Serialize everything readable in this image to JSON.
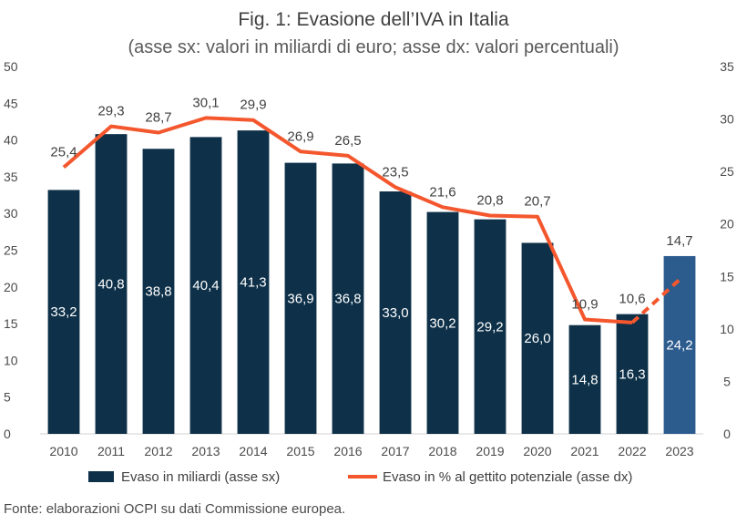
{
  "chart_data": {
    "type": "bar",
    "title": "Fig. 1: Evasione dell’IVA in Italia",
    "subtitle": "(asse sx: valori in miliardi di euro; asse dx: valori percentuali)",
    "categories": [
      "2010",
      "2011",
      "2012",
      "2013",
      "2014",
      "2015",
      "2016",
      "2017",
      "2018",
      "2019",
      "2020",
      "2021",
      "2022",
      "2023"
    ],
    "y_left": {
      "range": [
        0,
        50
      ],
      "ticks": [
        "0",
        "5",
        "10",
        "15",
        "20",
        "25",
        "30",
        "35",
        "40",
        "45",
        "50"
      ]
    },
    "y_right": {
      "range": [
        0,
        35
      ],
      "ticks": [
        "0",
        "5",
        "10",
        "15",
        "20",
        "25",
        "30",
        "35"
      ]
    },
    "series": [
      {
        "name": "Evaso in miliardi (asse sx)",
        "type": "bar",
        "axis": "left",
        "color": "#0e3149",
        "highlight_color": "#2c5b8e",
        "highlight_index": 13,
        "values": [
          33.2,
          40.8,
          38.8,
          40.4,
          41.3,
          36.9,
          36.8,
          33.0,
          30.2,
          29.2,
          26.0,
          14.8,
          16.3,
          24.2
        ],
        "labels": [
          "33,2",
          "40,8",
          "38,8",
          "40,4",
          "41,3",
          "36,9",
          "36,8",
          "33,0",
          "30,2",
          "29,2",
          "26,0",
          "14,8",
          "16,3",
          "24,2"
        ]
      },
      {
        "name": "Evaso in % al gettito potenziale (asse dx)",
        "type": "line",
        "axis": "right",
        "color": "#f4572d",
        "dashed_from_index": 12,
        "values": [
          25.4,
          29.3,
          28.7,
          30.1,
          29.9,
          26.9,
          26.5,
          23.5,
          21.6,
          20.8,
          20.7,
          10.9,
          10.6,
          14.7
        ],
        "labels": [
          "25,4",
          "29,3",
          "28,7",
          "30,1",
          "29,9",
          "26,9",
          "26,5",
          "23,5",
          "21,6",
          "20,8",
          "20,7",
          "10,9",
          "10,6",
          "14,7"
        ]
      }
    ],
    "legend": "bottom",
    "grid": false
  },
  "source_note": "Fonte: elaborazioni OCPI su dati Commissione europea."
}
